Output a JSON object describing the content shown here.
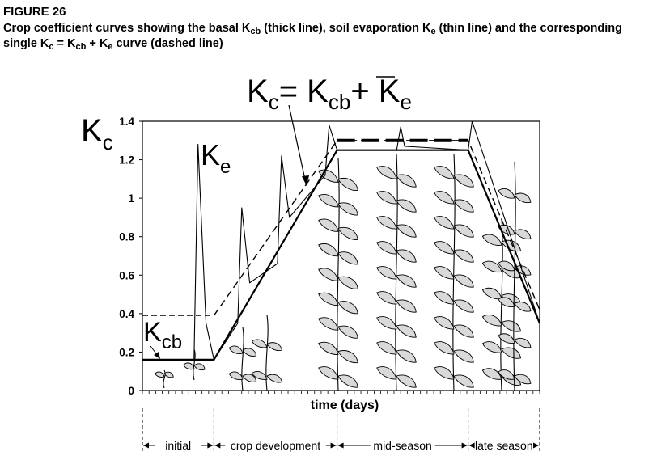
{
  "figure": {
    "label": "FIGURE 26",
    "caption": {
      "p1": "Crop coefficient curves showing the basal K",
      "s1": "cb",
      "p2": " (thick line), soil evaporation K",
      "s2": "e",
      "p3": " (thin line) and the corresponding single K",
      "s3": "c",
      "p4": " = K",
      "s4": "cb",
      "p5": " + K",
      "s5": "e",
      "p6": " curve (dashed line)"
    }
  },
  "chart_data": {
    "type": "line",
    "title": "",
    "xlabel": "time (days)",
    "ylabel": {
      "main": "K",
      "sub": "c"
    },
    "ylim": [
      0,
      1.4
    ],
    "yticks": [
      "0",
      "0.2",
      "0.4",
      "0.6",
      "0.8",
      "1",
      "1.2",
      "1.4"
    ],
    "xlim": [
      0,
      100
    ],
    "grid": false,
    "equation": {
      "k1": "K",
      "s1": "c",
      "eq": "= K",
      "s2": "cb",
      "plus": "+ ",
      "k3": "K",
      "s3": "e"
    },
    "curve_labels": {
      "kcb": {
        "main": "K",
        "sub": "cb"
      },
      "ke": {
        "main": "K",
        "sub": "e"
      }
    },
    "stages": [
      "initial",
      "crop development",
      "mid-season",
      "late season"
    ],
    "stage_boundaries": [
      0,
      18,
      49,
      82,
      100
    ],
    "series": [
      {
        "style": "thick",
        "x": [
          0,
          18,
          49,
          82,
          100
        ],
        "y": [
          0.16,
          0.16,
          1.25,
          1.25,
          0.35
        ]
      },
      {
        "style": "thin",
        "x": [
          0,
          13,
          14,
          16,
          18,
          24,
          25,
          27,
          34,
          35,
          37,
          46,
          47,
          49,
          64,
          65,
          66,
          82,
          83,
          100
        ],
        "y": [
          0.16,
          0.16,
          1.28,
          0.35,
          0.16,
          0.35,
          0.95,
          0.56,
          0.66,
          1.22,
          0.9,
          1.12,
          1.38,
          1.25,
          1.25,
          1.37,
          1.27,
          1.25,
          1.4,
          0.35
        ]
      },
      {
        "style": "dashed",
        "x": [
          0,
          18,
          49,
          82,
          100
        ],
        "y": [
          0.39,
          0.39,
          1.3,
          1.3,
          0.42
        ]
      }
    ]
  }
}
